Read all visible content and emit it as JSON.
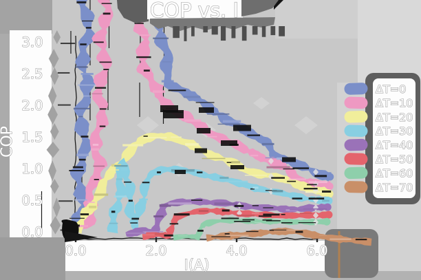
{
  "figure": {
    "title": "COP vs. I",
    "xlabel": "I(A)",
    "ylabel": "COP",
    "xticks": [
      "0.0",
      "2.0",
      "4.0",
      "6.0"
    ],
    "yticks": [
      "3.0",
      "2.5",
      "2.0",
      "1.5",
      "1.0",
      "0.5",
      "0.0"
    ]
  },
  "colors": {
    "background": "#c8c8c8",
    "panel_white": "#fdfdfd",
    "text_fill": "#ffffff",
    "text_outline": "#999999",
    "spine": "#1c1c1c",
    "legend_shadow": "#5e5e5e",
    "corner_blob": "#7a7a7a",
    "title_shadow": "#6e6e6e"
  },
  "chart_data": {
    "type": "line",
    "title": "COP vs. I",
    "xlabel": "I(A)",
    "ylabel": "COP",
    "xlim": [
      -0.3,
      6.6
    ],
    "ylim": [
      -0.3,
      3.35
    ],
    "x_axis_ticks": [
      0.0,
      2.0,
      4.0,
      6.0
    ],
    "y_axis_ticks": [
      0.0,
      0.5,
      1.0,
      1.5,
      2.0,
      2.5,
      3.0
    ],
    "grid": false,
    "legend_position": "right",
    "style": "xkcd-sketch, glitched scanlines, pastel ribbons on gray",
    "series": [
      {
        "name": "ΔT=0",
        "color": "#7b8fc9",
        "points": [
          [
            0.0,
            0.02
          ],
          [
            0.09,
            0.32
          ],
          [
            0.17,
            1.33
          ],
          [
            0.24,
            2.68
          ],
          [
            0.27,
            4.0
          ],
          [
            2.1,
            4.0
          ],
          [
            2.15,
            3.17
          ],
          [
            2.22,
            2.63
          ],
          [
            2.32,
            2.36
          ],
          [
            2.6,
            2.25
          ],
          [
            2.96,
            2.11
          ],
          [
            3.33,
            1.95
          ],
          [
            3.62,
            1.84
          ],
          [
            4.02,
            1.68
          ],
          [
            4.41,
            1.51
          ],
          [
            4.8,
            1.42
          ],
          [
            4.92,
            1.25
          ],
          [
            5.06,
            1.15
          ],
          [
            5.38,
            1.09
          ],
          [
            5.73,
            1.01
          ],
          [
            6.02,
            0.93
          ],
          [
            6.32,
            0.87
          ]
        ]
      },
      {
        "name": "ΔT=10",
        "color": "#ee99c2",
        "points": [
          [
            0.0,
            0.03
          ],
          [
            0.31,
            0.18
          ],
          [
            0.51,
            0.95
          ],
          [
            0.65,
            2.36
          ],
          [
            0.74,
            4.0
          ],
          [
            1.56,
            4.0
          ],
          [
            1.61,
            3.23
          ],
          [
            1.68,
            2.79
          ],
          [
            1.81,
            2.47
          ],
          [
            2.03,
            2.16
          ],
          [
            2.34,
            1.98
          ],
          [
            2.72,
            1.82
          ],
          [
            3.08,
            1.66
          ],
          [
            3.47,
            1.53
          ],
          [
            3.85,
            1.41
          ],
          [
            4.22,
            1.29
          ],
          [
            4.58,
            1.2
          ],
          [
            4.92,
            1.1
          ],
          [
            5.15,
            1.02
          ],
          [
            5.44,
            0.86
          ],
          [
            5.73,
            0.79
          ],
          [
            6.02,
            0.75
          ],
          [
            6.31,
            0.72
          ]
        ]
      },
      {
        "name": "ΔT=20",
        "color": "#f1ee9b",
        "points": [
          [
            0.03,
            0.01
          ],
          [
            0.27,
            0.27
          ],
          [
            0.55,
            0.6
          ],
          [
            0.82,
            0.86
          ],
          [
            1.11,
            1.11
          ],
          [
            1.42,
            1.33
          ],
          [
            1.74,
            1.47
          ],
          [
            2.05,
            1.53
          ],
          [
            2.34,
            1.51
          ],
          [
            2.65,
            1.42
          ],
          [
            2.96,
            1.35
          ],
          [
            3.28,
            1.25
          ],
          [
            3.59,
            1.16
          ],
          [
            3.9,
            1.08
          ],
          [
            4.24,
            0.98
          ],
          [
            4.56,
            0.92
          ],
          [
            4.89,
            0.87
          ],
          [
            5.23,
            0.82
          ],
          [
            5.56,
            0.75
          ],
          [
            5.91,
            0.66
          ],
          [
            6.31,
            0.6
          ]
        ]
      },
      {
        "name": "ΔT=30",
        "color": "#88cfe2",
        "points": [
          [
            0.91,
            -0.01
          ],
          [
            1.06,
            0.55
          ],
          [
            1.2,
            1.15
          ],
          [
            1.35,
            0.5
          ],
          [
            1.47,
            0.05
          ],
          [
            1.61,
            0.45
          ],
          [
            1.76,
            0.75
          ],
          [
            1.91,
            0.92
          ],
          [
            2.14,
            0.99
          ],
          [
            2.43,
            0.99
          ],
          [
            2.74,
            0.96
          ],
          [
            3.08,
            0.92
          ],
          [
            3.45,
            0.87
          ],
          [
            3.85,
            0.8
          ],
          [
            4.24,
            0.74
          ],
          [
            4.63,
            0.67
          ],
          [
            5.01,
            0.62
          ],
          [
            5.37,
            0.58
          ],
          [
            5.71,
            0.53
          ],
          [
            5.98,
            0.5
          ],
          [
            6.29,
            0.49
          ]
        ]
      },
      {
        "name": "ΔT=40",
        "color": "#9a72b8",
        "points": [
          [
            1.25,
            -0.04
          ],
          [
            1.5,
            0.0
          ],
          [
            1.74,
            0.04
          ],
          [
            1.98,
            -0.05
          ],
          [
            2.07,
            0.21
          ],
          [
            2.15,
            0.4
          ],
          [
            2.36,
            0.45
          ],
          [
            2.67,
            0.47
          ],
          [
            3.01,
            0.48
          ],
          [
            3.35,
            0.47
          ],
          [
            3.73,
            0.45
          ],
          [
            4.14,
            0.41
          ],
          [
            4.55,
            0.39
          ],
          [
            4.94,
            0.37
          ],
          [
            5.3,
            0.35
          ],
          [
            5.66,
            0.37
          ],
          [
            5.95,
            0.38
          ],
          [
            6.26,
            0.39
          ]
        ]
      },
      {
        "name": "ΔT=50",
        "color": "#e4646c",
        "points": [
          [
            1.66,
            -0.07
          ],
          [
            2.0,
            -0.04
          ],
          [
            2.32,
            -0.07
          ],
          [
            2.41,
            0.11
          ],
          [
            2.5,
            0.24
          ],
          [
            2.7,
            0.28
          ],
          [
            3.01,
            0.32
          ],
          [
            3.35,
            0.33
          ],
          [
            3.73,
            0.32
          ],
          [
            4.14,
            0.29
          ],
          [
            4.55,
            0.27
          ],
          [
            4.94,
            0.26
          ],
          [
            5.3,
            0.26
          ],
          [
            5.64,
            0.26
          ],
          [
            5.97,
            0.26
          ],
          [
            6.29,
            0.27
          ]
        ]
      },
      {
        "name": "ΔT=60",
        "color": "#8ecfab",
        "points": [
          [
            2.43,
            -0.09
          ],
          [
            2.74,
            -0.07
          ],
          [
            3.03,
            -0.09
          ],
          [
            3.11,
            0.07
          ],
          [
            3.2,
            0.13
          ],
          [
            3.42,
            0.16
          ],
          [
            3.76,
            0.18
          ],
          [
            4.14,
            0.18
          ],
          [
            4.53,
            0.17
          ],
          [
            4.91,
            0.16
          ],
          [
            5.25,
            0.16
          ],
          [
            5.59,
            0.16
          ],
          [
            5.91,
            0.15
          ],
          [
            6.24,
            0.16
          ]
        ]
      },
      {
        "name": "ΔT=70",
        "color": "#c98f68",
        "points": [
          [
            3.25,
            -0.1
          ],
          [
            3.68,
            -0.07
          ],
          [
            4.1,
            -0.04
          ],
          [
            4.53,
            -0.02
          ],
          [
            4.96,
            0.0
          ],
          [
            5.3,
            0.01
          ],
          [
            5.64,
            -0.01
          ],
          [
            6.07,
            -0.07
          ],
          [
            6.58,
            -0.12
          ],
          [
            7.01,
            -0.14
          ],
          [
            7.35,
            -0.16
          ]
        ]
      }
    ]
  }
}
